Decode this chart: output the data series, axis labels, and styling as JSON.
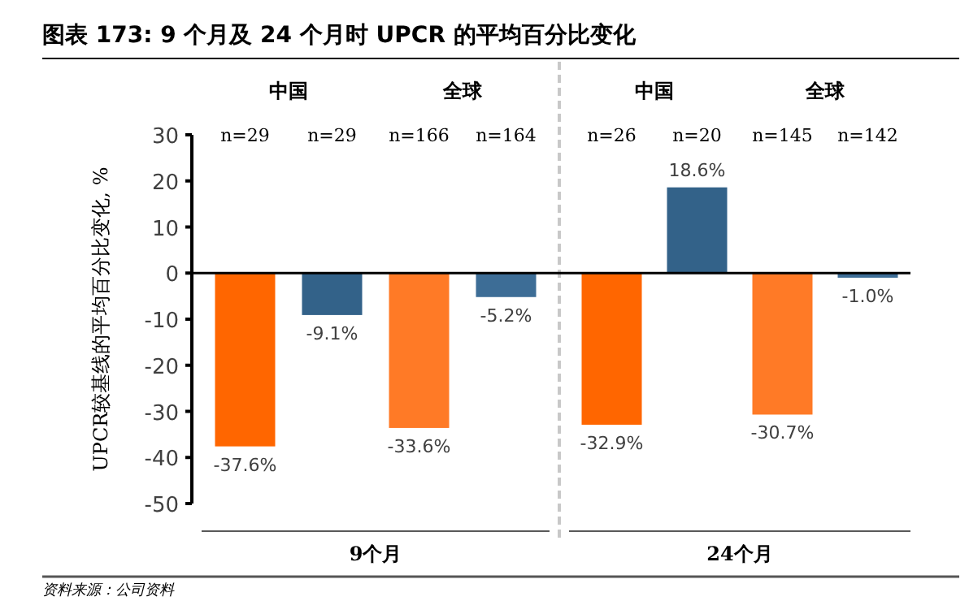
{
  "chart_data": {
    "type": "bar",
    "title": "图表 173: 9 个月及 24 个月时 UPCR 的平均百分比变化",
    "ylabel": "UPCR较基线的平均百分比变化, %",
    "categories": [
      "n=29",
      "n=29",
      "n=166",
      "n=164",
      "n=26",
      "n=20",
      "n=145",
      "n=142"
    ],
    "values": [
      -37.6,
      -9.1,
      -33.6,
      -5.2,
      -32.9,
      18.6,
      -30.7,
      -1.0
    ],
    "value_labels": [
      "-37.6%",
      "-9.1%",
      "-33.6%",
      "-5.2%",
      "-32.9%",
      "18.6%",
      "-30.7%",
      "-1.0%"
    ],
    "colors": [
      "#ff6600",
      "#336289",
      "#ff7a26",
      "#3d6d96",
      "#ff6600",
      "#336289",
      "#ff7a26",
      "#3d6d96"
    ],
    "ylim": [
      -50,
      30
    ],
    "yticks": [
      30,
      20,
      10,
      0,
      -10,
      -20,
      -30,
      -40,
      -50
    ],
    "annotations": [
      "中国",
      "全球",
      "中国",
      "全球",
      "9个月",
      "24个月",
      "资料来源：公司资料"
    ],
    "legend": false
  }
}
